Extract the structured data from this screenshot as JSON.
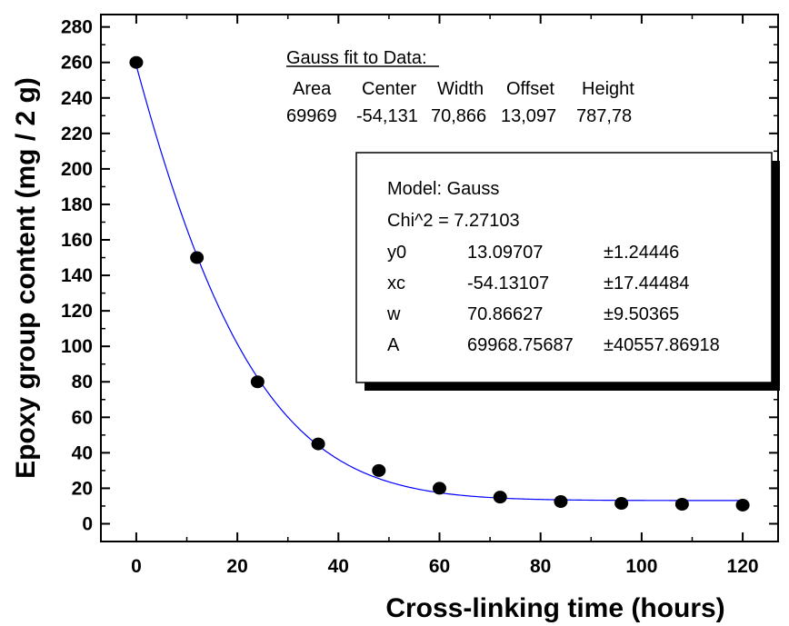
{
  "chart_data": {
    "type": "scatter",
    "xlabel": "Cross-linking time  (hours)",
    "ylabel": "Epoxy group content  (mg / 2 g)",
    "xlim": [
      -7,
      127
    ],
    "ylim": [
      -10,
      287
    ],
    "x_ticks": [
      0,
      20,
      40,
      60,
      80,
      100,
      120
    ],
    "y_ticks": [
      0,
      20,
      40,
      60,
      80,
      100,
      120,
      140,
      160,
      180,
      200,
      220,
      240,
      260,
      280
    ],
    "grid": false,
    "series": [
      {
        "type": "scatter",
        "color": "#000000",
        "x": [
          0,
          12,
          24,
          36,
          48,
          60,
          72,
          84,
          96,
          108,
          120
        ],
        "y": [
          260,
          150,
          80,
          45,
          30,
          20,
          15,
          12.5,
          11.5,
          11,
          10.5
        ]
      },
      {
        "type": "line",
        "color": "#0000ff",
        "model": "gauss",
        "params": {
          "y0": 13.09707,
          "xc": -54.13107,
          "w": 70.86627,
          "A": 69968.75687
        },
        "x_range": [
          0,
          120
        ]
      }
    ],
    "annotations": {
      "fit_title": "Gauss fit to Data:",
      "fit_headers": [
        "Area",
        "Center",
        "Width",
        "Offset",
        "Height"
      ],
      "fit_values": [
        "69969",
        "-54,131",
        "70,866",
        "13,097",
        "787,78"
      ],
      "model_box": {
        "model": "Model: Gauss",
        "chi": "Chi^2 = 7.27103",
        "rows": [
          [
            "y0",
            "13.09707",
            "±1.24446"
          ],
          [
            "xc",
            "-54.13107",
            "±17.44484"
          ],
          [
            "w",
            "70.86627",
            "±9.50365"
          ],
          [
            "A",
            "69968.75687",
            "±40557.86918"
          ]
        ]
      }
    }
  }
}
